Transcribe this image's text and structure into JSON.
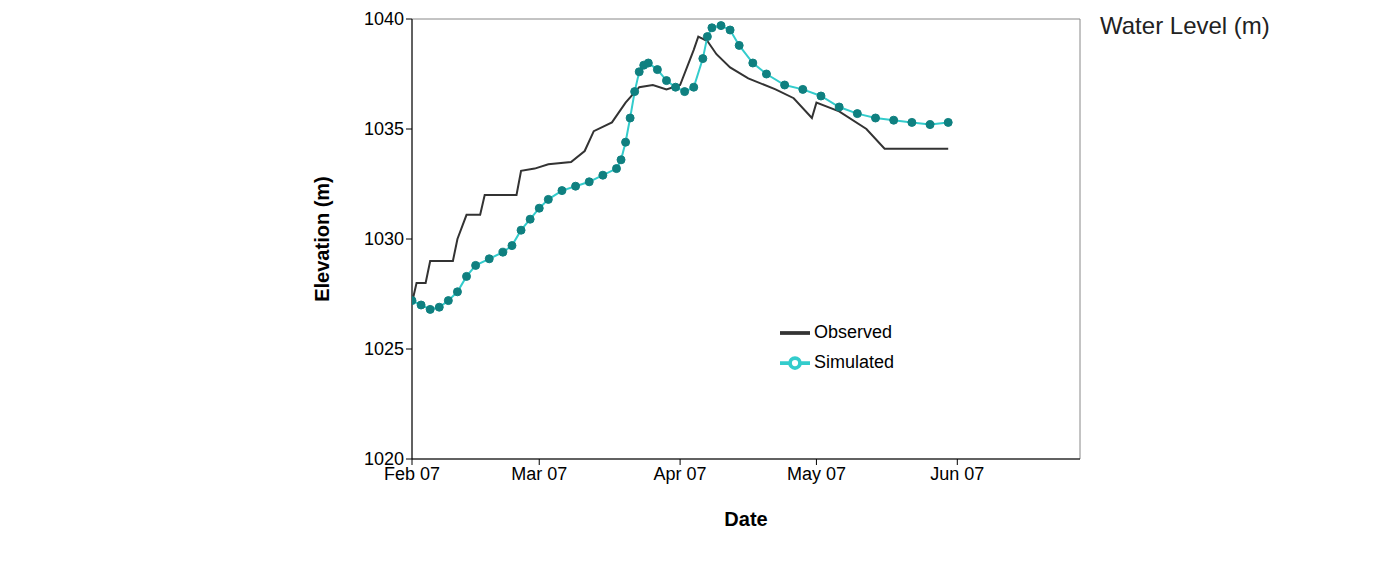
{
  "chart_data": {
    "type": "line",
    "title": "Water Level (m)",
    "x_label": "Date",
    "y_label": "Elevation (m)",
    "xlim": [
      0,
      147
    ],
    "xticks": [
      {
        "value": 0,
        "label": "Feb 07"
      },
      {
        "value": 28,
        "label": "Mar 07"
      },
      {
        "value": 59,
        "label": "Apr 07"
      },
      {
        "value": 89,
        "label": "May 07"
      },
      {
        "value": 120,
        "label": "Jun 07"
      }
    ],
    "ylim": [
      1020,
      1040
    ],
    "yticks": [
      1020,
      1025,
      1030,
      1035,
      1040
    ],
    "grid": false,
    "legend": "lower right",
    "series": [
      {
        "name": "Observed",
        "color": "#333333",
        "marker": "none",
        "line_style": "solid",
        "x": [
          0,
          1,
          3,
          4,
          9,
          10,
          12,
          15,
          16,
          23,
          24,
          27,
          30,
          35,
          38,
          40,
          44,
          47,
          50,
          53,
          56,
          59,
          62,
          63,
          65,
          67,
          70,
          74,
          80,
          84,
          88,
          89,
          94,
          100,
          104,
          118
        ],
        "values": [
          1027.1,
          1028.0,
          1028.0,
          1029.0,
          1029.0,
          1030.0,
          1031.1,
          1031.1,
          1032.0,
          1032.0,
          1033.1,
          1033.2,
          1033.4,
          1033.5,
          1034.0,
          1034.9,
          1035.3,
          1036.2,
          1036.9,
          1037.0,
          1036.8,
          1037.0,
          1038.6,
          1039.2,
          1039.0,
          1038.4,
          1037.8,
          1037.3,
          1036.8,
          1036.4,
          1035.5,
          1036.2,
          1035.8,
          1035.0,
          1034.1,
          1034.1
        ]
      },
      {
        "name": "Simulated",
        "color": "#33cccc",
        "marker": "circle",
        "line_style": "solid",
        "x": [
          0,
          2,
          4,
          6,
          8,
          10,
          12,
          14,
          17,
          20,
          22,
          24,
          26,
          28,
          30,
          33,
          36,
          39,
          42,
          45,
          46,
          47,
          48,
          49,
          50,
          51,
          52,
          54,
          56,
          58,
          60,
          62,
          64,
          65,
          66,
          68,
          70,
          72,
          75,
          78,
          82,
          86,
          90,
          94,
          98,
          102,
          106,
          110,
          114,
          118
        ],
        "values": [
          1027.2,
          1027.0,
          1026.8,
          1026.9,
          1027.2,
          1027.6,
          1028.3,
          1028.8,
          1029.1,
          1029.4,
          1029.7,
          1030.4,
          1030.9,
          1031.4,
          1031.8,
          1032.2,
          1032.4,
          1032.6,
          1032.9,
          1033.2,
          1033.6,
          1034.4,
          1035.5,
          1036.7,
          1037.6,
          1037.9,
          1038.0,
          1037.7,
          1037.2,
          1036.9,
          1036.7,
          1036.9,
          1038.2,
          1039.2,
          1039.6,
          1039.7,
          1039.5,
          1038.8,
          1038.0,
          1037.5,
          1037.0,
          1036.8,
          1036.5,
          1036.0,
          1035.7,
          1035.5,
          1035.4,
          1035.3,
          1035.2,
          1035.3
        ]
      }
    ]
  }
}
